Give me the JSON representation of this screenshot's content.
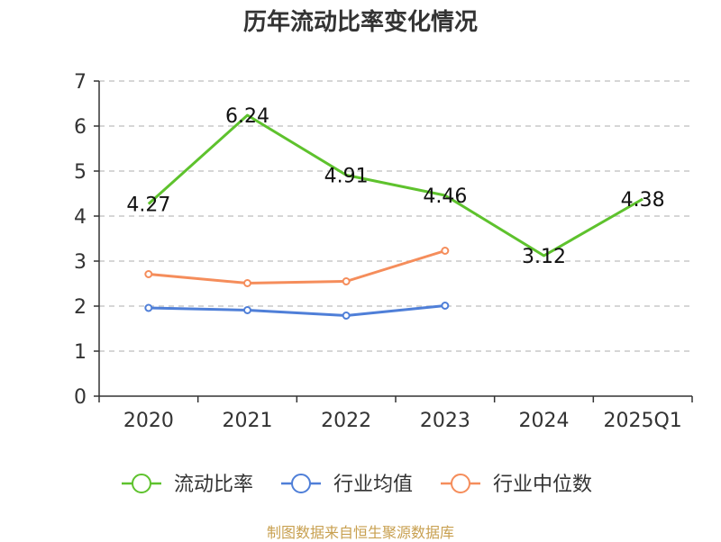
{
  "chart_data": {
    "type": "line",
    "title": "历年流动比率变化情况",
    "categories": [
      "2020",
      "2021",
      "2022",
      "2023",
      "2024",
      "2025Q1"
    ],
    "ylim": [
      0,
      7
    ],
    "yticks": [
      "0",
      "1",
      "2",
      "3",
      "4",
      "5",
      "6",
      "7"
    ],
    "grid": true,
    "legend_position": "bottom",
    "series": [
      {
        "name": "流动比率",
        "color": "#5ec22d",
        "values": [
          4.27,
          6.24,
          4.91,
          4.46,
          3.12,
          4.38
        ],
        "labels": [
          "4.27",
          "6.24",
          "4.91",
          "4.46",
          "3.12",
          "4.38"
        ],
        "show_points": false
      },
      {
        "name": "行业均值",
        "color": "#4f7fd8",
        "values": [
          1.96,
          1.91,
          1.79,
          2.01,
          null,
          null
        ],
        "show_points": true
      },
      {
        "name": "行业中位数",
        "color": "#f58d5b",
        "values": [
          2.71,
          2.51,
          2.55,
          3.23,
          null,
          null
        ],
        "show_points": true
      }
    ]
  },
  "source": "制图数据来自恒生聚源数据库"
}
